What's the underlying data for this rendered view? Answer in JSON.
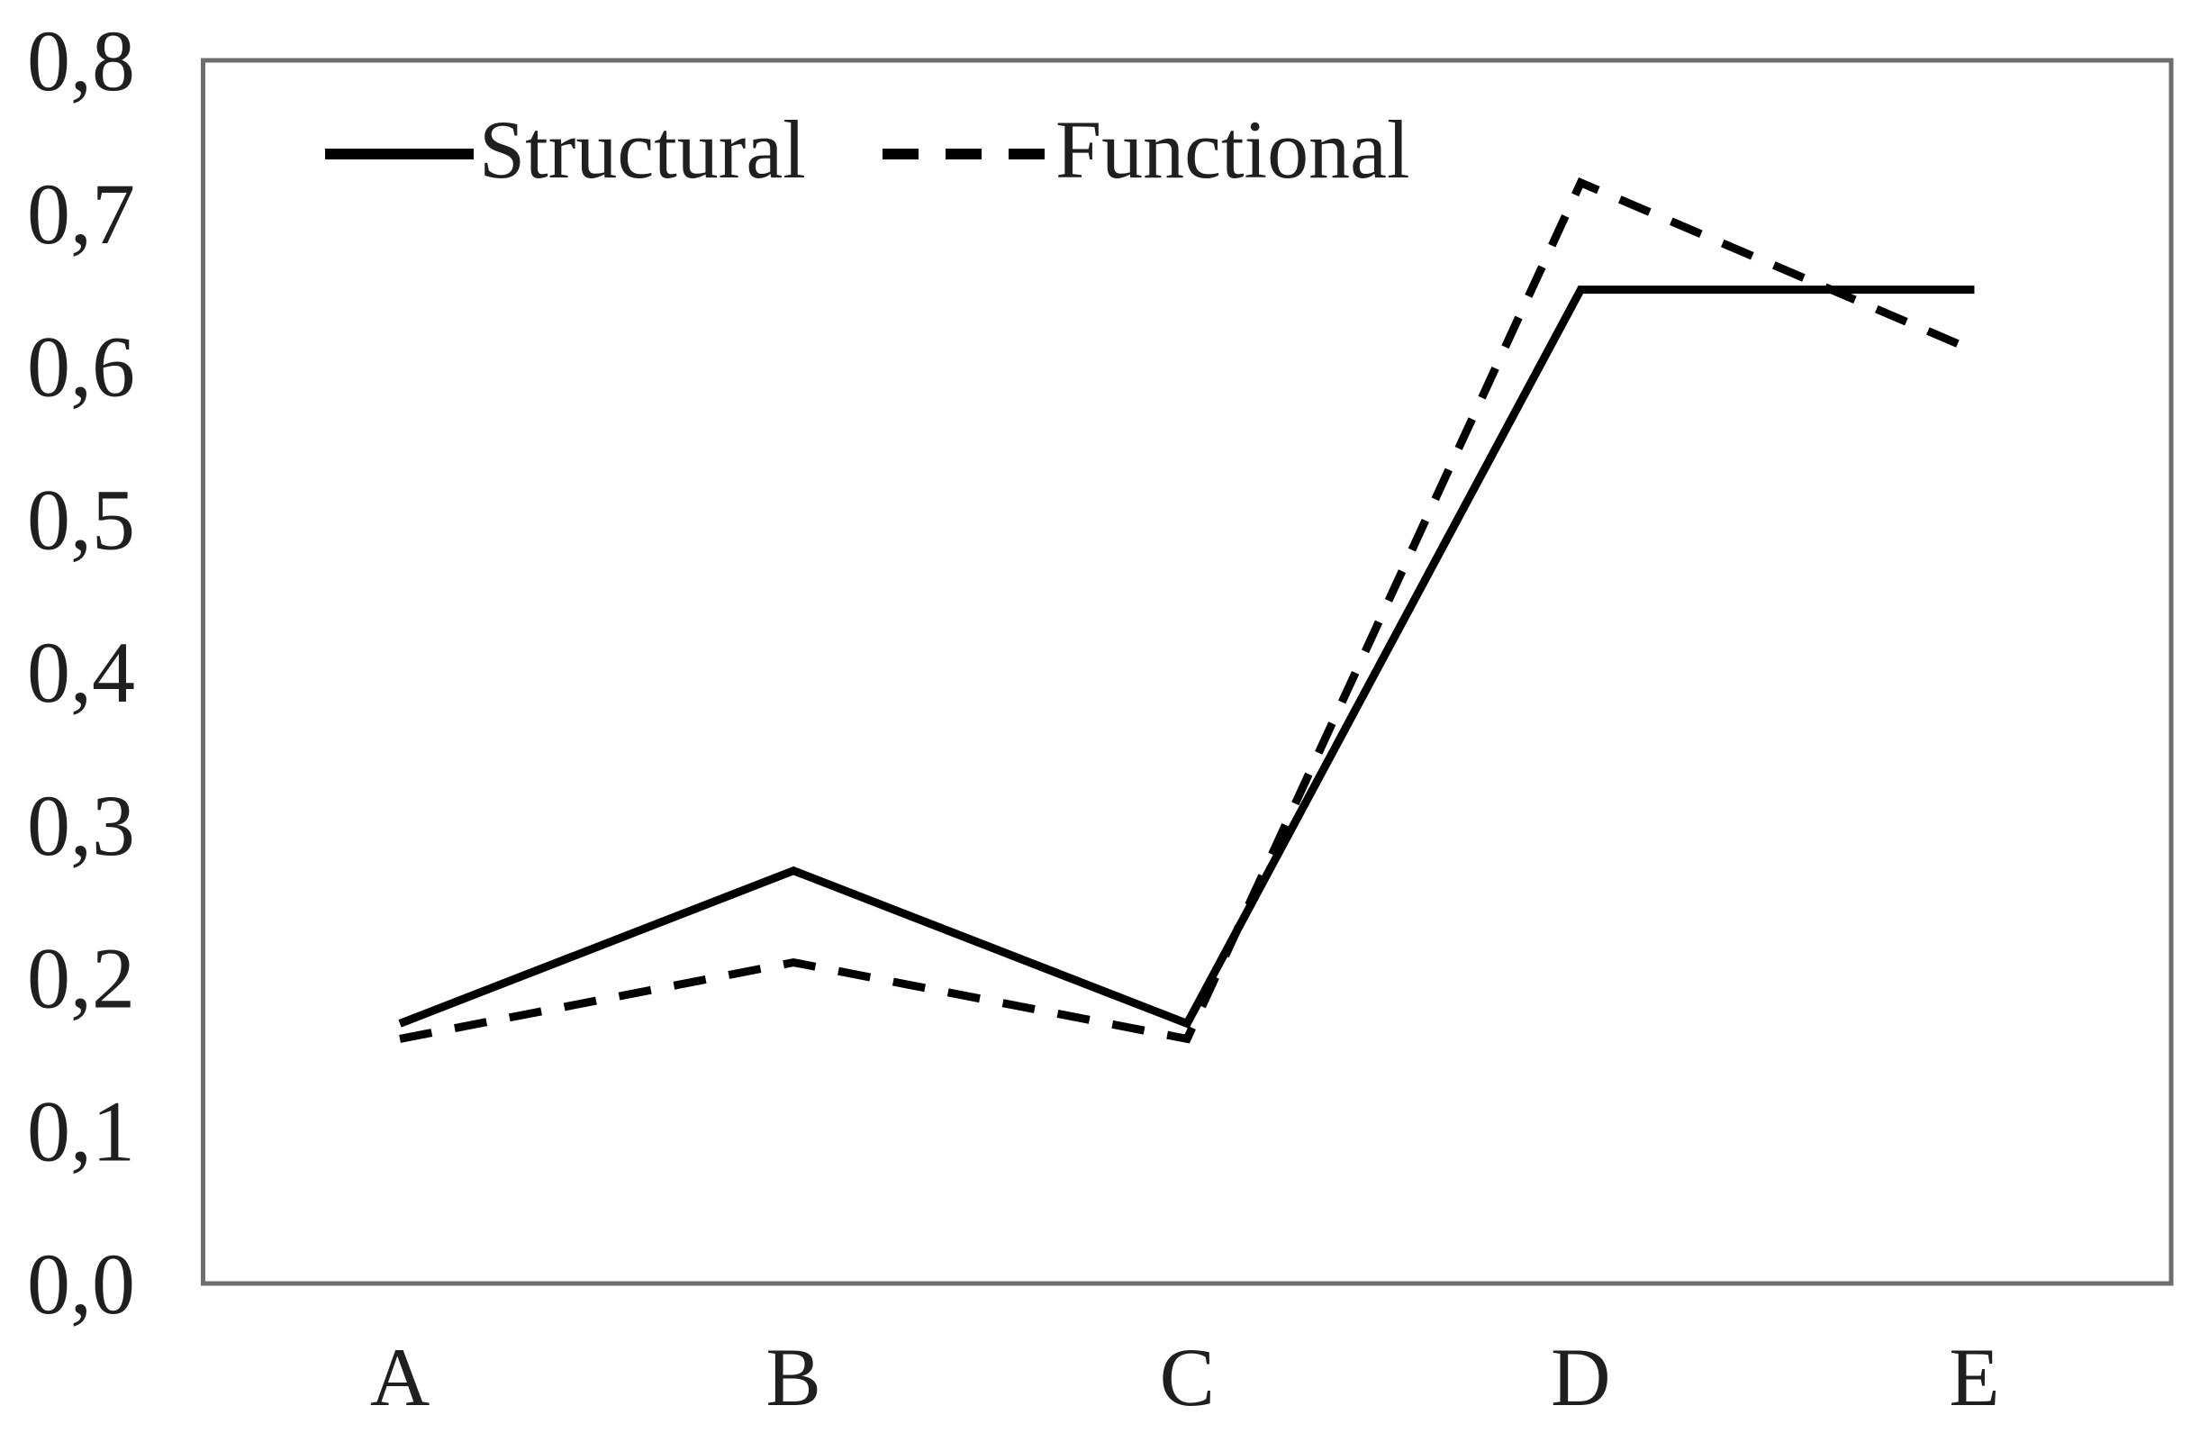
{
  "chart_data": {
    "type": "line",
    "categories": [
      "A",
      "B",
      "C",
      "D",
      "E"
    ],
    "series": [
      {
        "name": "Structural",
        "style": "solid",
        "values": [
          0.17,
          0.27,
          0.17,
          0.65,
          0.65
        ]
      },
      {
        "name": "Functional",
        "style": "dashed",
        "values": [
          0.16,
          0.21,
          0.16,
          0.72,
          0.61
        ]
      }
    ],
    "title": "",
    "xlabel": "",
    "ylabel": "",
    "ylim": [
      0.0,
      0.8
    ],
    "ytick_step": 0.1,
    "ytick_labels": [
      "0,0",
      "0,1",
      "0,2",
      "0,3",
      "0,4",
      "0,5",
      "0,6",
      "0,7",
      "0,8"
    ],
    "decimal_separator": ",",
    "grid": false,
    "legend_position": "top-left-inside",
    "colors": {
      "line": "#000000",
      "text": "#1f1f1f",
      "plot_border": "#6e6e6e",
      "background": "#ffffff"
    }
  }
}
